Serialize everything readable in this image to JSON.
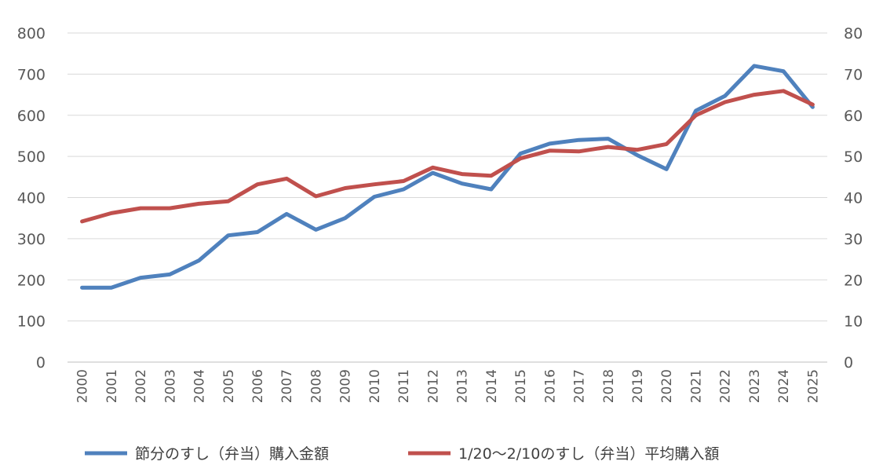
{
  "chart_data": {
    "type": "line",
    "title": "",
    "xlabel": "",
    "ylabel": "",
    "ylim": [
      0,
      800
    ],
    "y2lim": [
      0,
      80
    ],
    "y_ticks": [
      "0",
      "100",
      "200",
      "300",
      "400",
      "500",
      "600",
      "700",
      "800"
    ],
    "y2_ticks": [
      "0",
      "10",
      "20",
      "30",
      "40",
      "50",
      "60",
      "70",
      "80"
    ],
    "grid": true,
    "legend_position": "bottom",
    "categories": [
      "2000",
      "2001",
      "2002",
      "2003",
      "2004",
      "2005",
      "2006",
      "2007",
      "2008",
      "2009",
      "2010",
      "2011",
      "2012",
      "2013",
      "2014",
      "2015",
      "2016",
      "2017",
      "2018",
      "2019",
      "2020",
      "2021",
      "2022",
      "2023",
      "2024",
      "2025"
    ],
    "series": [
      {
        "name": "節分のすし（弁当）購入金額",
        "axis": "left",
        "color": "#4f81bd",
        "values": [
          181,
          181,
          205,
          213,
          247,
          308,
          316,
          360,
          322,
          350,
          402,
          420,
          460,
          434,
          420,
          507,
          531,
          540,
          543,
          503,
          469,
          611,
          647,
          720,
          707,
          620
        ]
      },
      {
        "name": "1/20～2/10のすし（弁当）平均購入額",
        "axis": "right",
        "color": "#c0504d",
        "values": [
          34.2,
          36.2,
          37.4,
          37.4,
          38.5,
          39.1,
          43.2,
          44.6,
          40.3,
          42.3,
          43.2,
          44.0,
          47.3,
          45.7,
          45.3,
          49.5,
          51.4,
          51.2,
          52.3,
          51.6,
          53.0,
          60.0,
          63.2,
          65.0,
          65.9,
          62.6
        ]
      }
    ]
  }
}
